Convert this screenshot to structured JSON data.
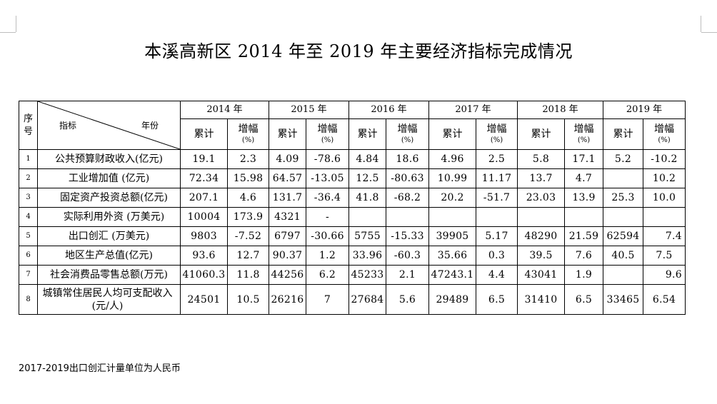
{
  "title": "本溪高新区 2014 年至 2019 年主要经济指标完成情况",
  "header": {
    "seq_label": "序号",
    "seq_chars": [
      "序",
      "号"
    ],
    "indicator_label": "指标",
    "year_label": "年份",
    "years": [
      "2014 年",
      "2015 年",
      "2016 年",
      "2017 年",
      "2018 年",
      "2019 年"
    ],
    "cumulative": "累计",
    "growth": "增幅",
    "growth_unit": "(%)"
  },
  "rows": [
    {
      "no": "1",
      "name": "公共预算财政收入(亿元)",
      "values": [
        "19.1",
        "2.3",
        "4.09",
        "-78.6",
        "4.84",
        "18.6",
        "4.96",
        "2.5",
        "5.8",
        "17.1",
        "5.2",
        "-10.2"
      ]
    },
    {
      "no": "2",
      "name": "工业增加值 (亿元)",
      "values": [
        "72.34",
        "15.98",
        "64.57",
        "-13.05",
        "12.5",
        "-80.63",
        "10.99",
        "11.17",
        "13.7",
        "4.7",
        "",
        "10.2"
      ]
    },
    {
      "no": "3",
      "name": "固定资产投资总额(亿元)",
      "values": [
        "207.1",
        "4.6",
        "131.7",
        "-36.4",
        "41.8",
        "-68.2",
        "20.2",
        "-51.7",
        "23.03",
        "13.9",
        "25.3",
        "10.0"
      ]
    },
    {
      "no": "4",
      "name": "实际利用外资   (万美元)",
      "values": [
        "10004",
        "173.9",
        "4321",
        "-",
        "",
        "",
        "",
        "",
        "",
        "",
        "",
        ""
      ]
    },
    {
      "no": "5",
      "name": "出口创汇   (万美元)",
      "values": [
        "9803",
        "-7.52",
        "6797",
        "-30.66",
        "5755",
        "-15.33",
        "39905",
        "5.17",
        "48290",
        "21.59",
        "62594",
        "7.4"
      ]
    },
    {
      "no": "6",
      "name": "地区生产总值(亿元)",
      "values": [
        "93.6",
        "12.7",
        "90.37",
        "1.2",
        "33.96",
        "-60.3",
        "35.66",
        "0.3",
        "39.5",
        "7.6",
        "40.5",
        "7.5"
      ]
    },
    {
      "no": "7",
      "name": "社会消费品零售总额(万元)",
      "values": [
        "41060.3",
        "11.8",
        "44256",
        "6.2",
        "45233",
        "2.1",
        "47243.1",
        "4.4",
        "43041",
        "1.9",
        "",
        "9.6"
      ]
    },
    {
      "no": "8",
      "name": "城镇常住居民人均可支配收入 (元/人)",
      "values": [
        "24501",
        "10.5",
        "26216",
        "7",
        "27684",
        "5.6",
        "29489",
        "6.5",
        "31410",
        "6.5",
        "33465",
        "6.54"
      ]
    }
  ],
  "footnote": "2017-2019出口创汇计量单位为人民币"
}
